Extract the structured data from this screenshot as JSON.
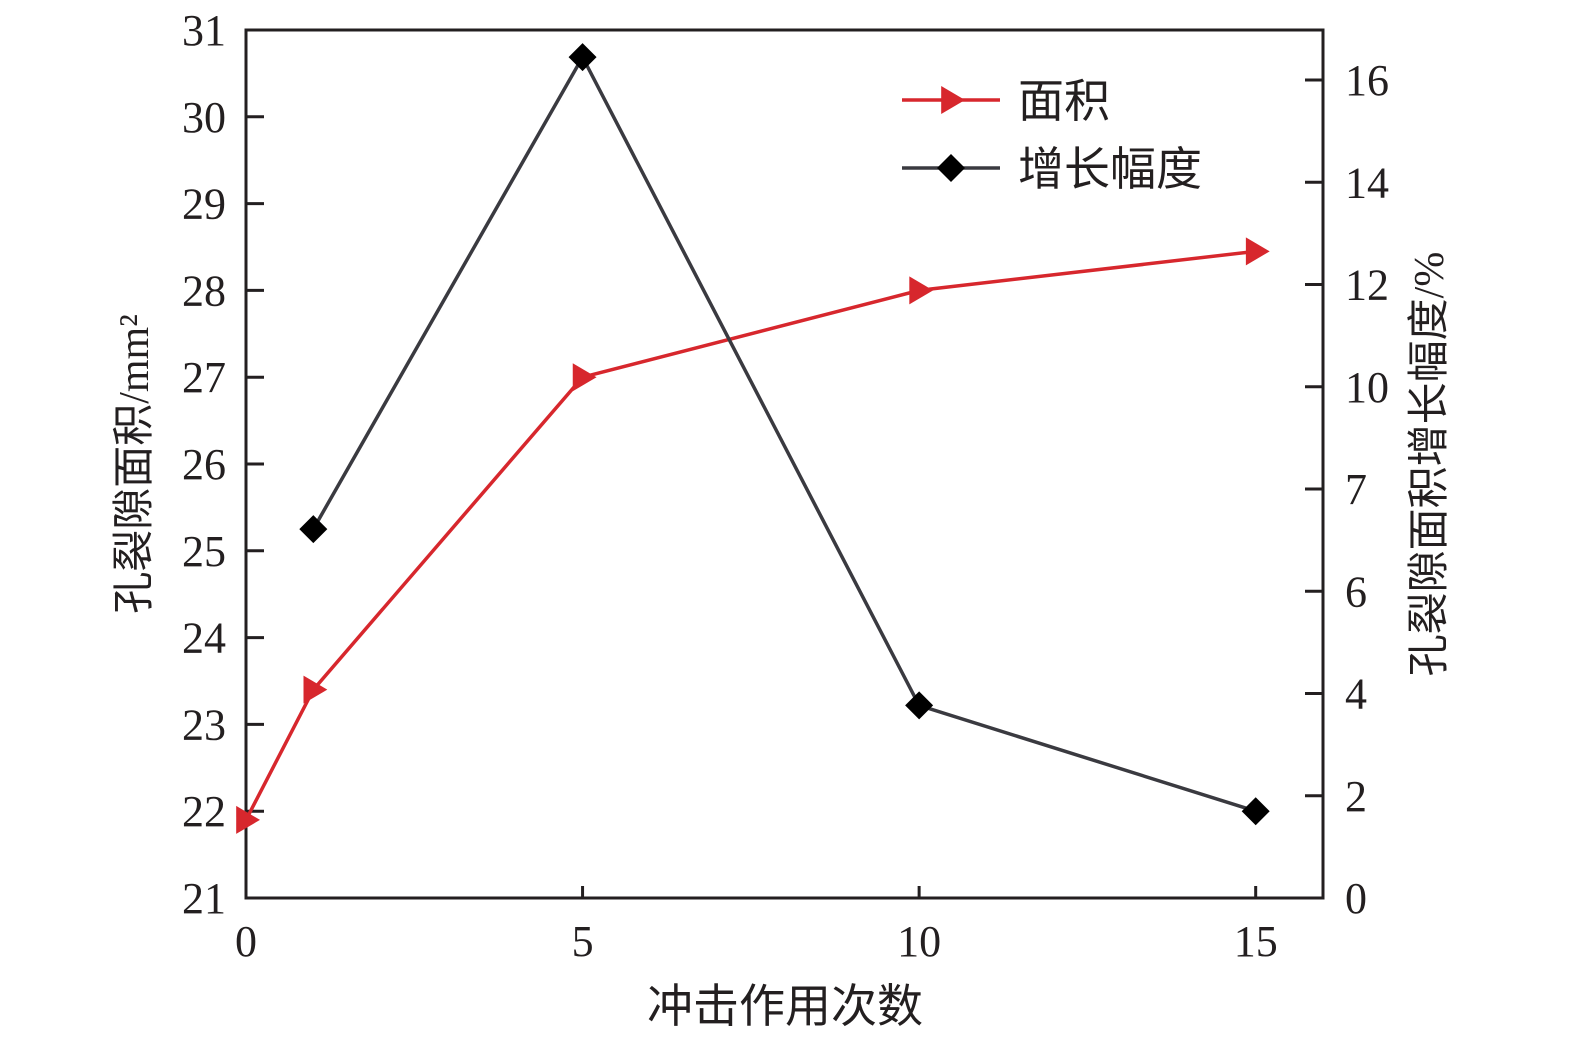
{
  "chart_data": {
    "type": "line",
    "title": "",
    "xlabel": "冲击作用次数",
    "ylabel": "孔裂隙面积/mm²",
    "ylabel_right": "孔裂隙面积增长幅度/%",
    "xlim": [
      0,
      16
    ],
    "ylim": [
      21,
      31
    ],
    "ylim_right": [
      0,
      16
    ],
    "xticks": [
      0,
      5,
      10,
      15
    ],
    "yticks": [
      21,
      22,
      23,
      24,
      25,
      26,
      27,
      28,
      29,
      30,
      31
    ],
    "yticks_right_labels": [
      "0",
      "2",
      "4",
      "6",
      "7",
      "10",
      "12",
      "14",
      "16"
    ],
    "grid": false,
    "legend_position": "top-right",
    "series": [
      {
        "name": "面积",
        "axis": "left",
        "color": "#d7272d",
        "marker": "triangle-right",
        "x": [
          0,
          1,
          5,
          10,
          15
        ],
        "y": [
          21.9,
          23.4,
          27.0,
          28.0,
          28.45
        ]
      },
      {
        "name": "增长幅度",
        "axis": "right",
        "color": "#3a3a40",
        "marker_color": "#000000",
        "marker": "diamond",
        "x": [
          1,
          5,
          10,
          15
        ],
        "y": [
          6.8,
          15.5,
          3.55,
          1.6
        ]
      }
    ]
  }
}
